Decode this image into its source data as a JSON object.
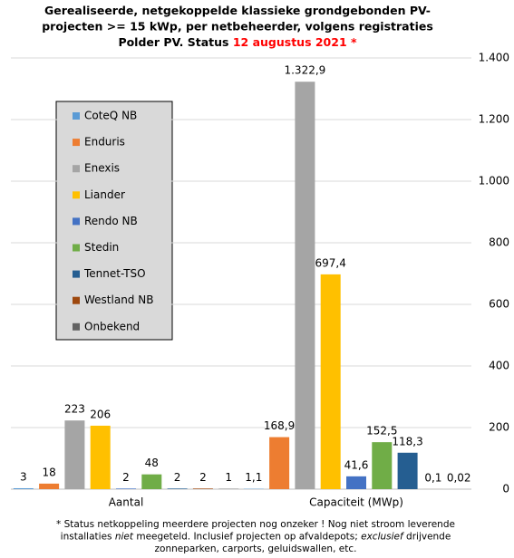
{
  "chart_data": {
    "type": "bar",
    "title": [
      [
        "Gerealiseerde, netgekoppelde klassieke grondgebonden PV-"
      ],
      [
        "projecten >= 15 kWp, per netbeheerder, volgens registraties"
      ],
      [
        "Polder PV. Status ",
        {
          "text": "12 augustus 2021 *",
          "color": "#ff0000"
        }
      ]
    ],
    "categories": [
      "Aantal",
      "Capaciteit (MWp)"
    ],
    "series": [
      {
        "name": "CoteQ NB",
        "color": "#5b9bd5",
        "values": [
          3,
          1.1
        ],
        "value_labels": [
          "3",
          "1,1"
        ]
      },
      {
        "name": "Enduris",
        "color": "#ed7d31",
        "values": [
          18,
          168.9
        ],
        "value_labels": [
          "18",
          "168,9"
        ]
      },
      {
        "name": "Enexis",
        "color": "#a5a5a5",
        "values": [
          223,
          1322.9
        ],
        "value_labels": [
          "223",
          "1.322,9"
        ]
      },
      {
        "name": "Liander",
        "color": "#ffc000",
        "values": [
          206,
          697.4
        ],
        "value_labels": [
          "206",
          "697,4"
        ]
      },
      {
        "name": "Rendo NB",
        "color": "#4472c4",
        "values": [
          2,
          41.6
        ],
        "value_labels": [
          "2",
          "41,6"
        ]
      },
      {
        "name": "Stedin",
        "color": "#70ad47",
        "values": [
          48,
          152.5
        ],
        "value_labels": [
          "48",
          "152,5"
        ]
      },
      {
        "name": "Tennet-TSO",
        "color": "#255e91",
        "values": [
          2,
          118.3
        ],
        "value_labels": [
          "2",
          "118,3"
        ]
      },
      {
        "name": "Westland NB",
        "color": "#9e480e",
        "values": [
          2,
          0.1
        ],
        "value_labels": [
          "2",
          "0,1"
        ]
      },
      {
        "name": "Onbekend",
        "color": "#636363",
        "values": [
          1,
          0.02
        ],
        "value_labels": [
          "1",
          "0,02"
        ]
      }
    ],
    "ylim": [
      0,
      1400
    ],
    "yticks": [
      0,
      200,
      400,
      600,
      800,
      {
        "value": 1000,
        "label": "1.000"
      },
      {
        "value": 1200,
        "label": "1.200"
      },
      {
        "value": 1400,
        "label": "1.400"
      }
    ],
    "grid": true,
    "footnote": [
      [
        "* Status netkoppeling meerdere projecten nog onzeker ! Nog niet stroom leverende"
      ],
      [
        "installaties ",
        {
          "text": "niet",
          "italic": true
        },
        " meegeteld. Inclusief projecten op afvaldepots; ",
        {
          "text": "exclusief",
          "italic": true
        },
        " drijvende"
      ],
      [
        "zonneparken, carports, geluidswallen, etc."
      ]
    ]
  }
}
